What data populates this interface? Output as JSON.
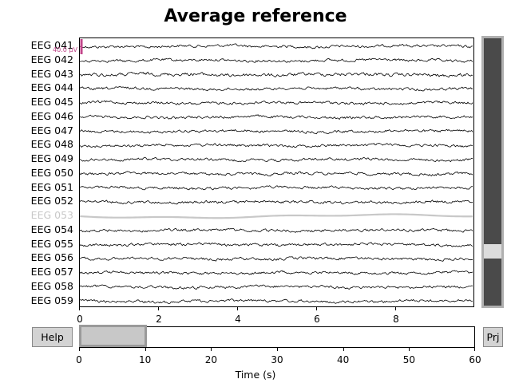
{
  "title": "Average reference",
  "channels": [
    {
      "name": "EEG 041",
      "bad": false
    },
    {
      "name": "EEG 042",
      "bad": false
    },
    {
      "name": "EEG 043",
      "bad": false
    },
    {
      "name": "EEG 044",
      "bad": false
    },
    {
      "name": "EEG 045",
      "bad": false
    },
    {
      "name": "EEG 046",
      "bad": false
    },
    {
      "name": "EEG 047",
      "bad": false
    },
    {
      "name": "EEG 048",
      "bad": false
    },
    {
      "name": "EEG 049",
      "bad": false
    },
    {
      "name": "EEG 050",
      "bad": false
    },
    {
      "name": "EEG 051",
      "bad": false
    },
    {
      "name": "EEG 052",
      "bad": false
    },
    {
      "name": "EEG 053",
      "bad": true
    },
    {
      "name": "EEG 054",
      "bad": false
    },
    {
      "name": "EEG 055",
      "bad": false
    },
    {
      "name": "EEG 056",
      "bad": false
    },
    {
      "name": "EEG 057",
      "bad": false
    },
    {
      "name": "EEG 058",
      "bad": false
    },
    {
      "name": "EEG 059",
      "bad": false
    }
  ],
  "scale_bar_label": "40.0 µV",
  "main_axis": {
    "xlim": [
      0,
      10
    ],
    "ticks": [
      "0",
      "2",
      "4",
      "6",
      "8"
    ]
  },
  "overview_axis": {
    "xlim": [
      0,
      60
    ],
    "ticks": [
      "0",
      "10",
      "20",
      "30",
      "40",
      "50",
      "60"
    ],
    "xlabel": "Time (s)",
    "view_window": [
      0,
      10
    ]
  },
  "buttons": {
    "help": "Help",
    "projections": "Prj"
  },
  "colors": {
    "trace": "#000000",
    "bad_trace": "#c8c8c8",
    "scale_bar": "#c0468a",
    "scrollbar": "#4a4a4a"
  }
}
